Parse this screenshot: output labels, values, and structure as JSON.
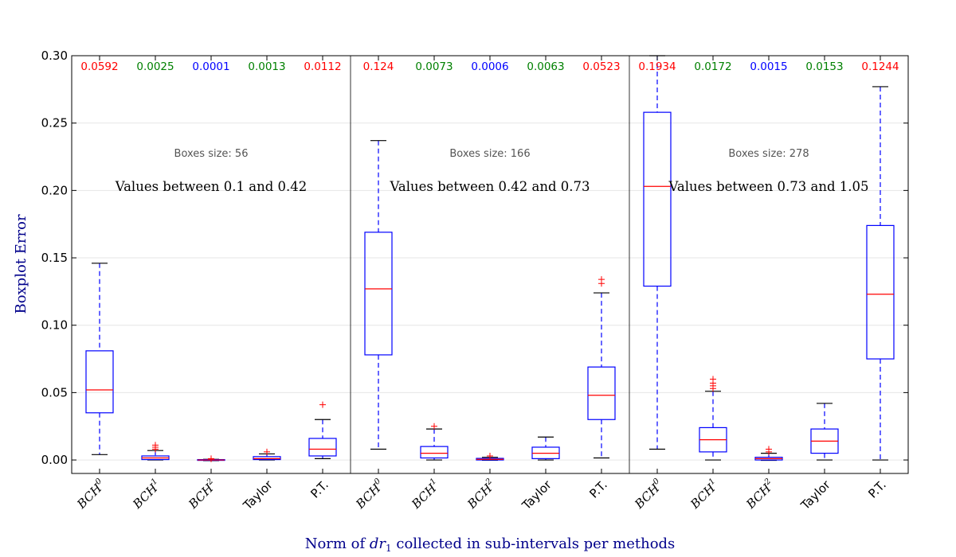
{
  "chart_data": {
    "type": "boxplot",
    "xlabel": "Norm of dr₁ collected in sub-intervals per methods",
    "xlabel_prefix": "Norm of ",
    "xlabel_var": "dr",
    "xlabel_sub": "1",
    "xlabel_suffix": " collected in sub-intervals per methods",
    "ylabel": "Boxplot Error",
    "ylim": [
      -0.01,
      0.3
    ],
    "yticks": [
      "0.00",
      "0.05",
      "0.10",
      "0.15",
      "0.20",
      "0.25",
      "0.30"
    ],
    "grid": "horizontal",
    "colors": {
      "box": "#0000ff",
      "median": "#ff0000",
      "whisker": "#0000ff",
      "cap": "#000000",
      "flier": "#ff0000",
      "stat_red": "#ff0000",
      "stat_green": "#008000",
      "stat_blue": "#0000ff"
    },
    "panels": [
      {
        "range_label": "Values between 0.1 and 0.42",
        "box_size_label": "Boxes size: 56",
        "methods": [
          {
            "label_base": "BCH",
            "label_sup": "0",
            "stat": "0.0592",
            "stat_color": "red",
            "q1": 0.035,
            "median": 0.052,
            "q3": 0.081,
            "whisker_low": 0.004,
            "whisker_high": 0.146,
            "fliers": []
          },
          {
            "label_base": "BCH",
            "label_sup": "1",
            "stat": "0.0025",
            "stat_color": "green",
            "q1": 0.0003,
            "median": 0.0015,
            "q3": 0.003,
            "whisker_low": 0.0,
            "whisker_high": 0.007,
            "fliers": [
              0.008,
              0.0095,
              0.011
            ]
          },
          {
            "label_base": "BCH",
            "label_sup": "2",
            "stat": "0.0001",
            "stat_color": "blue",
            "q1": -0.0003,
            "median": 0.0,
            "q3": 0.0003,
            "whisker_low": -0.0005,
            "whisker_high": 0.0005,
            "fliers": [
              0.0008,
              0.001
            ]
          },
          {
            "label_base": "Taylor",
            "label_sup": "",
            "stat": "0.0013",
            "stat_color": "green",
            "q1": 0.0003,
            "median": 0.001,
            "q3": 0.0025,
            "whisker_low": 0.0,
            "whisker_high": 0.0045,
            "fliers": [
              0.006
            ]
          },
          {
            "label_base": "P.T.",
            "label_sup": "",
            "stat": "0.0112",
            "stat_color": "red",
            "q1": 0.003,
            "median": 0.008,
            "q3": 0.016,
            "whisker_low": 0.001,
            "whisker_high": 0.03,
            "fliers": [
              0.041
            ]
          }
        ]
      },
      {
        "range_label": "Values between 0.42 and 0.73",
        "box_size_label": "Boxes size: 166",
        "methods": [
          {
            "label_base": "BCH",
            "label_sup": "0",
            "stat": "0.124",
            "stat_color": "red",
            "q1": 0.078,
            "median": 0.127,
            "q3": 0.169,
            "whisker_low": 0.008,
            "whisker_high": 0.237,
            "fliers": []
          },
          {
            "label_base": "BCH",
            "label_sup": "1",
            "stat": "0.0073",
            "stat_color": "green",
            "q1": 0.0015,
            "median": 0.005,
            "q3": 0.01,
            "whisker_low": 0.0,
            "whisker_high": 0.023,
            "fliers": [
              0.025
            ]
          },
          {
            "label_base": "BCH",
            "label_sup": "2",
            "stat": "0.0006",
            "stat_color": "blue",
            "q1": 0.0,
            "median": 0.0005,
            "q3": 0.0012,
            "whisker_low": -0.0002,
            "whisker_high": 0.002,
            "fliers": [
              0.003
            ]
          },
          {
            "label_base": "Taylor",
            "label_sup": "",
            "stat": "0.0063",
            "stat_color": "green",
            "q1": 0.001,
            "median": 0.005,
            "q3": 0.0095,
            "whisker_low": 0.0,
            "whisker_high": 0.017,
            "fliers": []
          },
          {
            "label_base": "P.T.",
            "label_sup": "",
            "stat": "0.0523",
            "stat_color": "red",
            "q1": 0.03,
            "median": 0.048,
            "q3": 0.069,
            "whisker_low": 0.0015,
            "whisker_high": 0.124,
            "fliers": [
              0.131,
              0.134
            ]
          }
        ]
      },
      {
        "range_label": "Values between 0.73 and 1.05",
        "box_size_label": "Boxes size: 278",
        "methods": [
          {
            "label_base": "BCH",
            "label_sup": "0",
            "stat": "0.1934",
            "stat_color": "red",
            "q1": 0.129,
            "median": 0.203,
            "q3": 0.258,
            "whisker_low": 0.008,
            "whisker_high": 0.3,
            "fliers": []
          },
          {
            "label_base": "BCH",
            "label_sup": "1",
            "stat": "0.0172",
            "stat_color": "green",
            "q1": 0.006,
            "median": 0.015,
            "q3": 0.024,
            "whisker_low": 0.0,
            "whisker_high": 0.051,
            "fliers": [
              0.053,
              0.055,
              0.057,
              0.06
            ]
          },
          {
            "label_base": "BCH",
            "label_sup": "2",
            "stat": "0.0015",
            "stat_color": "blue",
            "q1": 0.0,
            "median": 0.001,
            "q3": 0.002,
            "whisker_low": -0.0003,
            "whisker_high": 0.005,
            "fliers": [
              0.006,
              0.008
            ]
          },
          {
            "label_base": "Taylor",
            "label_sup": "",
            "stat": "0.0153",
            "stat_color": "green",
            "q1": 0.005,
            "median": 0.014,
            "q3": 0.023,
            "whisker_low": 0.0,
            "whisker_high": 0.042,
            "fliers": []
          },
          {
            "label_base": "P.T.",
            "label_sup": "",
            "stat": "0.1244",
            "stat_color": "red",
            "q1": 0.075,
            "median": 0.123,
            "q3": 0.174,
            "whisker_low": 0.0,
            "whisker_high": 0.277,
            "fliers": []
          }
        ]
      }
    ]
  }
}
